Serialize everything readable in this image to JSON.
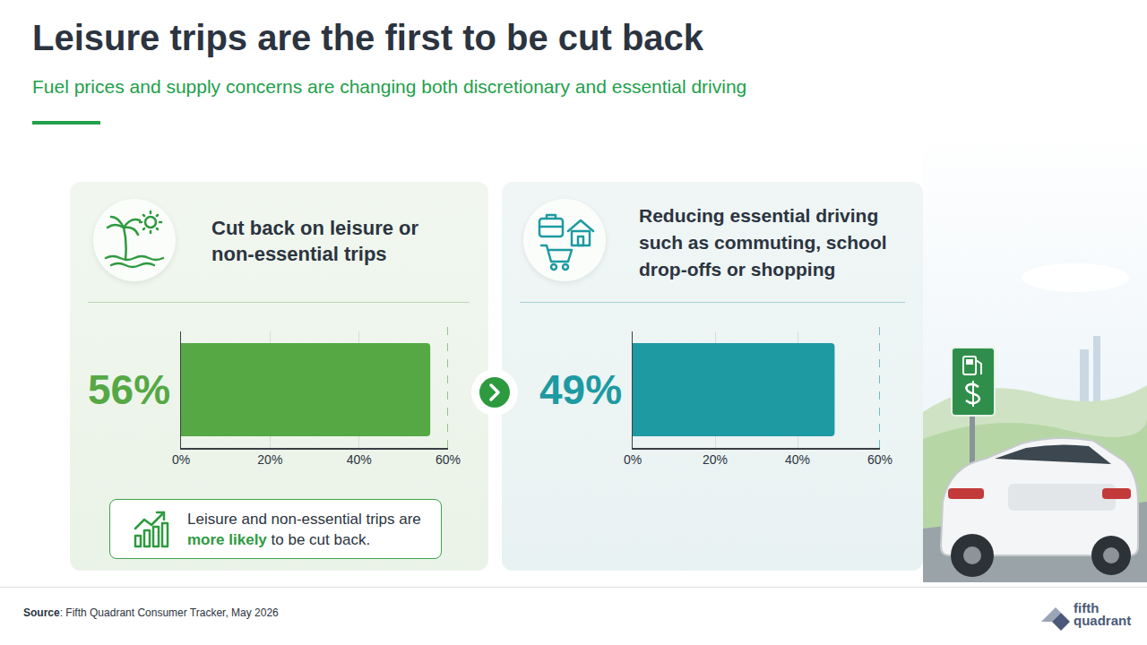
{
  "title": "Leisure trips are the first to be cut back",
  "subtitle": "Fuel prices and supply concerns are changing both discretionary and essential driving",
  "chart_data": [
    {
      "type": "bar",
      "orientation": "horizontal",
      "title": "Cut back on leisure or non-essential trips",
      "categories": [
        null
      ],
      "values": [
        56
      ],
      "value_labels": [
        "56%"
      ],
      "data_labels": true,
      "color": "#56a845",
      "xlim": [
        0,
        60
      ],
      "xticks": [
        {
          "value": 0,
          "label": "0%"
        },
        {
          "value": 20,
          "label": "20%"
        },
        {
          "value": 40,
          "label": "40%"
        },
        {
          "value": 60,
          "label": "60%"
        }
      ],
      "grid": true,
      "tick_labels": "x"
    },
    {
      "type": "bar",
      "orientation": "horizontal",
      "title": "Reducing essential driving such as commuting, school drop-offs or shopping",
      "categories": [
        null
      ],
      "values": [
        49
      ],
      "value_labels": [
        "49%"
      ],
      "data_labels": true,
      "color": "#1e9aa2",
      "xlim": [
        0,
        60
      ],
      "xticks": [
        {
          "value": 0,
          "label": "0%"
        },
        {
          "value": 20,
          "label": "20%"
        },
        {
          "value": 40,
          "label": "40%"
        },
        {
          "value": 60,
          "label": "60%"
        }
      ],
      "grid": true,
      "tick_labels": "x"
    }
  ],
  "callout": {
    "before": "Leisure and non-essential trips are ",
    "emphasis": "more likely",
    "after": " to be cut back."
  },
  "source": {
    "label": "Source",
    "text": ": Fifth Quadrant Consumer Tracker, May 2026"
  },
  "logo": [
    "fifth",
    "quadrant"
  ]
}
